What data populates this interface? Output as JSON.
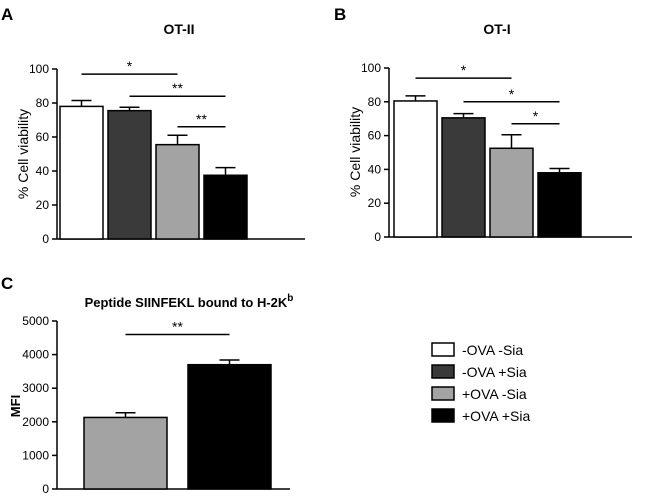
{
  "chart_data": [
    {
      "type": "bar",
      "panel_label": "A",
      "title": "OT-II",
      "ylabel": "% Cell viability",
      "ylim": [
        0,
        100
      ],
      "yticks": [
        "0",
        "20",
        "40",
        "60",
        "80",
        "100"
      ],
      "categories": [
        "-OVA -Sia",
        "-OVA +Sia",
        "+OVA -Sia",
        "+OVA +Sia"
      ],
      "values": [
        78,
        75.5,
        55.5,
        37.5
      ],
      "errors": [
        3.5,
        2,
        5.5,
        4.5
      ],
      "colors": [
        "#ffffff",
        "#3a3a3a",
        "#a3a3a3",
        "#000000"
      ],
      "significance": [
        {
          "from": 0,
          "to": 2,
          "label": "*",
          "y": 97
        },
        {
          "from": 1,
          "to": 3,
          "label": "**",
          "y": 84
        },
        {
          "from": 2,
          "to": 3,
          "label": "**",
          "y": 66
        }
      ]
    },
    {
      "type": "bar",
      "panel_label": "B",
      "title": "OT-I",
      "ylabel": "% Cell viability",
      "ylim": [
        0,
        100
      ],
      "yticks": [
        "0",
        "20",
        "40",
        "60",
        "80",
        "100"
      ],
      "categories": [
        "-OVA -Sia",
        "-OVA +Sia",
        "+OVA -Sia",
        "+OVA +Sia"
      ],
      "values": [
        80.5,
        70.5,
        52.5,
        38
      ],
      "errors": [
        3,
        2.5,
        8,
        2.5
      ],
      "colors": [
        "#ffffff",
        "#3a3a3a",
        "#a3a3a3",
        "#000000"
      ],
      "significance": [
        {
          "from": 0,
          "to": 2,
          "label": "*",
          "y": 94
        },
        {
          "from": 1,
          "to": 3,
          "label": "*",
          "y": 80
        },
        {
          "from": 2,
          "to": 3,
          "label": "*",
          "y": 67
        }
      ]
    },
    {
      "type": "bar",
      "panel_label": "C",
      "title": "Peptide SIINFEKL bound to H-2K",
      "title_superscript": "b",
      "ylabel": "MFI",
      "ylim": [
        0,
        5000
      ],
      "yticks": [
        "0",
        "1000",
        "2000",
        "3000",
        "4000",
        "5000"
      ],
      "categories": [
        "+OVA -Sia",
        "+OVA +Sia"
      ],
      "values": [
        2130,
        3700
      ],
      "errors": [
        140,
        140
      ],
      "colors": [
        "#a3a3a3",
        "#000000"
      ],
      "significance": [
        {
          "from": 0,
          "to": 1,
          "label": "**",
          "y": 4600
        }
      ]
    }
  ],
  "legend": {
    "placement": "bottom-right",
    "entries": [
      {
        "label": "-OVA -Sia",
        "color": "#ffffff"
      },
      {
        "label": "-OVA +Sia",
        "color": "#3a3a3a"
      },
      {
        "label": "+OVA -Sia",
        "color": "#a3a3a3"
      },
      {
        "label": "+OVA +Sia",
        "color": "#000000"
      }
    ]
  }
}
